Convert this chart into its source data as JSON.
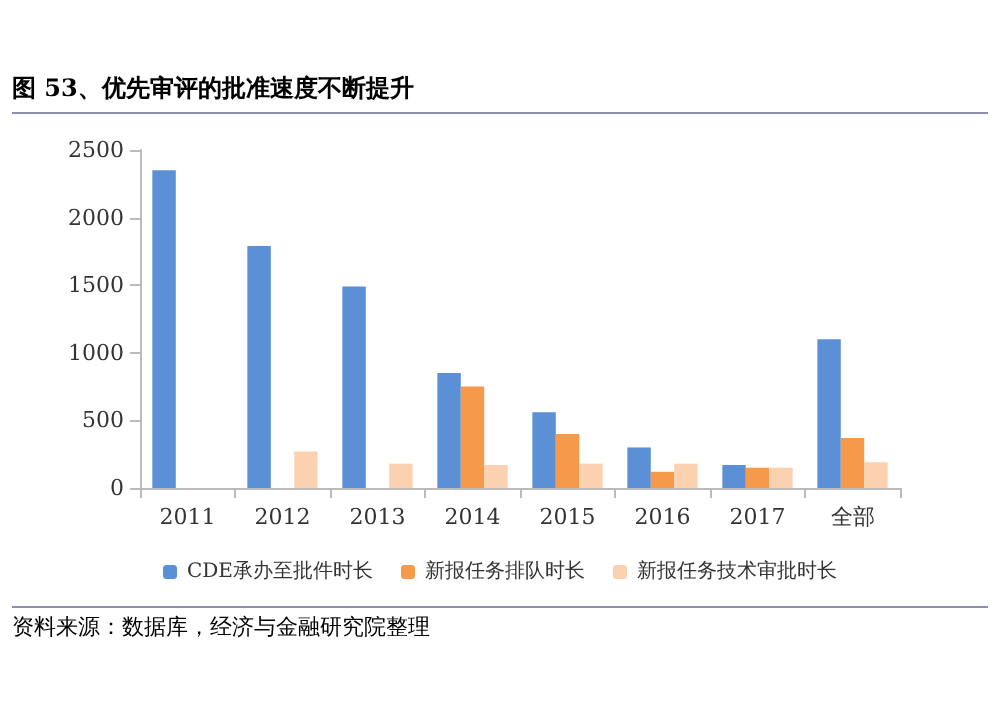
{
  "chart_data": {
    "type": "bar",
    "title": "图 53、优先审评的批准速度不断提升",
    "categories": [
      "2011",
      "2012",
      "2013",
      "2014",
      "2015",
      "2016",
      "2017",
      "全部"
    ],
    "series": [
      {
        "name": "CDE承办至批件时长",
        "color": "#5b8fd6",
        "values": [
          2350,
          1790,
          1490,
          850,
          560,
          300,
          170,
          1100
        ]
      },
      {
        "name": "新报任务排队时长",
        "color": "#f59a4a",
        "values": [
          null,
          null,
          null,
          750,
          400,
          120,
          150,
          370
        ]
      },
      {
        "name": "新报任务技术审批时长",
        "color": "#fbd1b0",
        "values": [
          null,
          270,
          180,
          170,
          180,
          180,
          150,
          190
        ]
      }
    ],
    "ylim": [
      0,
      2500
    ],
    "yticks": [
      0,
      500,
      1000,
      1500,
      2000,
      2500
    ],
    "grid": false,
    "legend": "bottom",
    "annotations": [
      "资料来源：数据库，经济与金融研究院整理"
    ]
  }
}
